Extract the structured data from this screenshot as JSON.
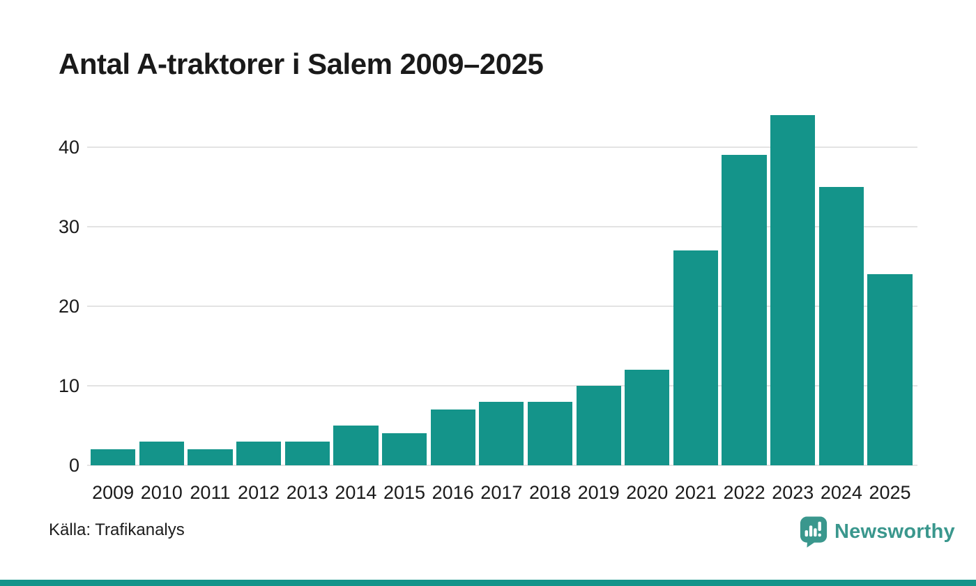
{
  "chart": {
    "title": "Antal A-traktorer i Salem 2009–2025",
    "source": "Källa: Trafikanalys"
  },
  "branding": {
    "name": "Newsworthy",
    "icon": "newsworthy-speech-bubble-bar-chart-icon"
  },
  "colors": {
    "bar": "#14948a",
    "brand_text": "#3a978d",
    "brand_icon": "#3a978d",
    "icon_mark": "#ffffff",
    "gridline": "#e3e3e3",
    "text": "#1a1a1a",
    "footer_bar": "#14948a"
  },
  "chart_data": {
    "type": "bar",
    "title": "Antal A-traktorer i Salem 2009–2025",
    "categories": [
      "2009",
      "2010",
      "2011",
      "2012",
      "2013",
      "2014",
      "2015",
      "2016",
      "2017",
      "2018",
      "2019",
      "2020",
      "2021",
      "2022",
      "2023",
      "2024",
      "2025"
    ],
    "values": [
      2,
      3,
      2,
      3,
      3,
      5,
      4,
      7,
      8,
      8,
      10,
      12,
      27,
      39,
      44,
      35,
      24
    ],
    "xlabel": "",
    "ylabel": "",
    "ylim": [
      0,
      44
    ],
    "yticks": [
      0,
      10,
      20,
      30,
      40
    ],
    "grid": "horizontal",
    "legend": "none",
    "source": "Källa: Trafikanalys"
  }
}
